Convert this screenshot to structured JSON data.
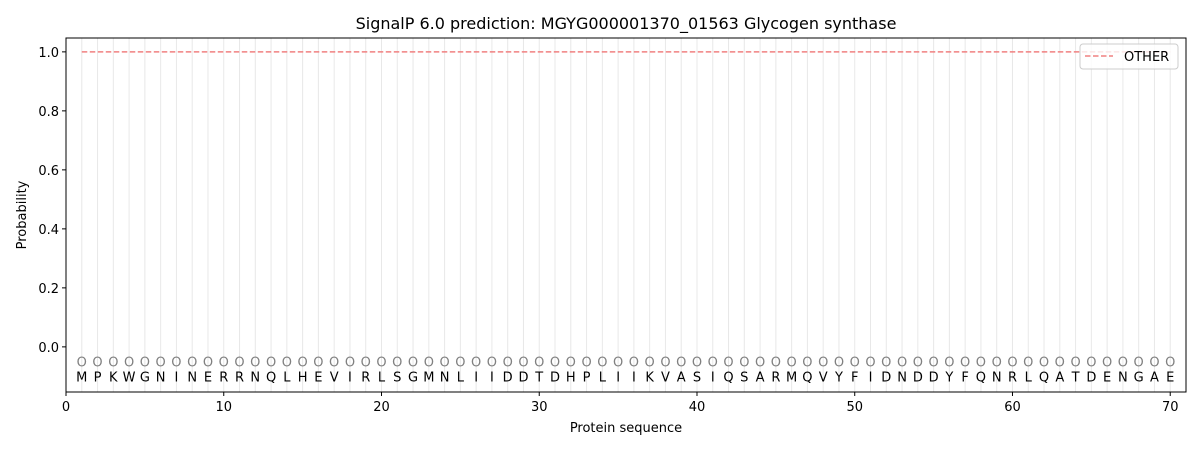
{
  "chart_data": {
    "type": "line",
    "title": "SignalP 6.0 prediction: MGYG000001370_01563 Glycogen synthase",
    "xlabel": "Protein sequence",
    "ylabel": "Probability",
    "xlim": [
      0,
      71
    ],
    "ylim": [
      -0.153,
      1.047
    ],
    "xticks": [
      0,
      10,
      20,
      30,
      40,
      50,
      60,
      70
    ],
    "yticks": [
      0.0,
      0.2,
      0.4,
      0.6,
      0.8,
      1.0
    ],
    "ytick_labels": [
      "0.0",
      "0.2",
      "0.4",
      "0.6",
      "0.8",
      "1.0"
    ],
    "grid": "vertical lines at each residue",
    "legend_position": "top-right",
    "sequence": [
      "M",
      "P",
      "K",
      "W",
      "G",
      "N",
      "I",
      "N",
      "E",
      "R",
      "R",
      "N",
      "Q",
      "L",
      "H",
      "E",
      "V",
      "I",
      "R",
      "L",
      "S",
      "G",
      "M",
      "N",
      "L",
      "I",
      "I",
      "D",
      "D",
      "T",
      "D",
      "H",
      "P",
      "L",
      "I",
      "I",
      "K",
      "V",
      "A",
      "S",
      "I",
      "Q",
      "S",
      "A",
      "R",
      "M",
      "Q",
      "V",
      "Y",
      "F",
      "I",
      "D",
      "N",
      "D",
      "D",
      "Y",
      "F",
      "Q",
      "N",
      "R",
      "L",
      "Q",
      "A",
      "T",
      "D",
      "E",
      "N",
      "G",
      "A",
      "E"
    ],
    "predicted_label": "O",
    "series": [
      {
        "name": "OTHER",
        "color": "#f08080",
        "style": "dashed",
        "x_start": 1,
        "x_end": 70,
        "value": 1.0
      }
    ]
  }
}
